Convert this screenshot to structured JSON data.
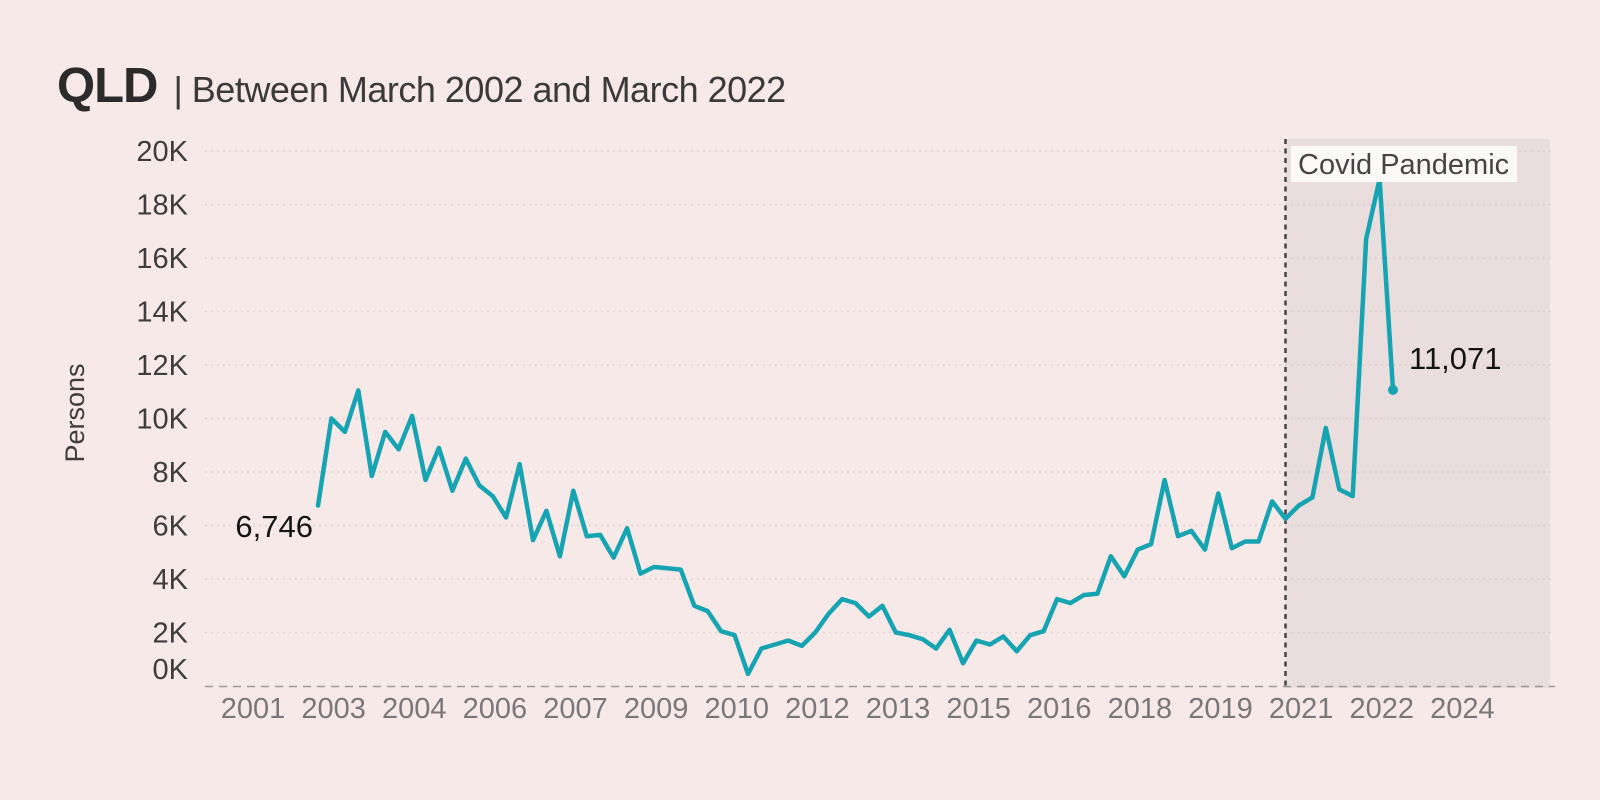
{
  "page": {
    "title": "QLD",
    "subtitle": "| Between March 2002 and March 2022"
  },
  "colors": {
    "background": "#f7e9e7",
    "line": "#16a3b2",
    "covid_region_fill": "#e9dedd",
    "covid_divider": "#4a4a4a",
    "baseline": "#9a9a9a",
    "gridline": "#d9cbc9",
    "y_tick_text": "#3d3d3d",
    "x_tick_text": "#7a777b",
    "annotation_text": "#141414",
    "covid_label_box": "#fcfaf9"
  },
  "annotations": {
    "start_value_label": "6,746",
    "end_value_label": "11,071",
    "covid_label": "Covid Pandemic"
  },
  "chart_data": {
    "type": "line",
    "title": "QLD | Between March 2002 and March 2022",
    "xlabel": "",
    "ylabel": "Persons",
    "x_unit": "quarter",
    "x_start": "2002-03",
    "x_end": "2022-03",
    "step_months": 3,
    "ylim": [
      0,
      20000
    ],
    "grid": "horizontal-dotted",
    "legend": "none",
    "covid_region_start": "2020-03",
    "first_point_value": 6746,
    "last_point_value": 11071,
    "peak_value": 18950,
    "y_ticks": [
      {
        "label": "0K",
        "v": 0
      },
      {
        "label": "2K",
        "v": 2000
      },
      {
        "label": "4K",
        "v": 4000
      },
      {
        "label": "6K",
        "v": 6000
      },
      {
        "label": "8K",
        "v": 8000
      },
      {
        "label": "10K",
        "v": 10000
      },
      {
        "label": "12K",
        "v": 12000
      },
      {
        "label": "14K",
        "v": 14000
      },
      {
        "label": "16K",
        "v": 16000
      },
      {
        "label": "18K",
        "v": 18000
      },
      {
        "label": "20K",
        "v": 20000
      }
    ],
    "x_ticks": [
      {
        "label": "2001",
        "t": 2001
      },
      {
        "label": "2003",
        "t": 2002.5
      },
      {
        "label": "2004",
        "t": 2004
      },
      {
        "label": "2006",
        "t": 2005.5
      },
      {
        "label": "2007",
        "t": 2007
      },
      {
        "label": "2009",
        "t": 2008.5
      },
      {
        "label": "2010",
        "t": 2010
      },
      {
        "label": "2012",
        "t": 2011.5
      },
      {
        "label": "2013",
        "t": 2013
      },
      {
        "label": "2015",
        "t": 2014.5
      },
      {
        "label": "2016",
        "t": 2016
      },
      {
        "label": "2018",
        "t": 2017.5
      },
      {
        "label": "2019",
        "t": 2019
      },
      {
        "label": "2021",
        "t": 2020.5
      },
      {
        "label": "2022",
        "t": 2022
      },
      {
        "label": "2024",
        "t": 2023.5
      }
    ],
    "series": [
      {
        "name": "Persons",
        "values": [
          6746,
          10000,
          9500,
          11050,
          7850,
          9500,
          8850,
          10100,
          7700,
          8900,
          7300,
          8500,
          7500,
          7100,
          6300,
          8300,
          5450,
          6550,
          4850,
          7300,
          5600,
          5650,
          4800,
          5900,
          4200,
          4450,
          4400,
          4350,
          3000,
          2800,
          2050,
          1900,
          450,
          1400,
          1550,
          1700,
          1500,
          2000,
          2700,
          3250,
          3100,
          2600,
          3000,
          2000,
          1900,
          1750,
          1400,
          2100,
          850,
          1700,
          1550,
          1850,
          1300,
          1900,
          2050,
          3250,
          3100,
          3400,
          3450,
          4850,
          4100,
          5100,
          5300,
          7700,
          5600,
          5800,
          5100,
          7200,
          5150,
          5400,
          5400,
          6900,
          6250,
          6750,
          7050,
          9650,
          7350,
          7100,
          16700,
          18950,
          11071
        ]
      }
    ]
  }
}
